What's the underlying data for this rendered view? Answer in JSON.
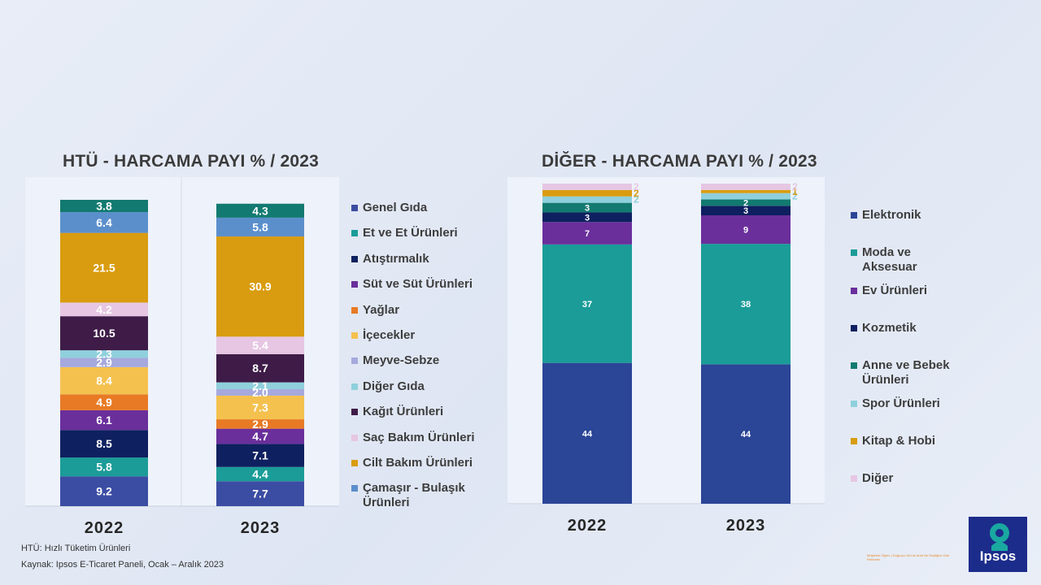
{
  "titles": {
    "left": "HTÜ - HARCAMA PAYI %  / 2023",
    "right": "DİĞER - HARCAMA PAYI %  / 2023"
  },
  "chart_data": [
    {
      "type": "bar",
      "stacked": true,
      "title": "HTÜ - HARCAMA PAYI %  / 2023",
      "categories": [
        "2022",
        "2023"
      ],
      "series": [
        {
          "name": "Genel Gıda",
          "color": "#3b4da3",
          "values": [
            9.2,
            7.7
          ]
        },
        {
          "name": "Et ve Et Ürünleri",
          "color": "#1b9c98",
          "values": [
            5.8,
            4.4
          ]
        },
        {
          "name": "Atıştırmalık",
          "color": "#0e2060",
          "values": [
            8.5,
            7.1
          ]
        },
        {
          "name": "Süt ve Süt Ürünleri",
          "color": "#6a2f9b",
          "values": [
            6.1,
            4.7
          ]
        },
        {
          "name": "Yağlar",
          "color": "#e87a25",
          "values": [
            4.9,
            2.9
          ]
        },
        {
          "name": "İçecekler",
          "color": "#f4c14f",
          "values": [
            8.4,
            7.3
          ]
        },
        {
          "name": "Meyve-Sebze",
          "color": "#a6a9dd",
          "values": [
            2.9,
            2.0
          ]
        },
        {
          "name": "Diğer Gıda",
          "color": "#8fd0dc",
          "values": [
            2.3,
            2.1
          ]
        },
        {
          "name": "Kağıt Ürünleri",
          "color": "#3f1c48",
          "values": [
            10.5,
            8.7
          ]
        },
        {
          "name": "Saç Bakım Ürünleri",
          "color": "#e6c6e3",
          "values": [
            4.2,
            5.4
          ]
        },
        {
          "name": "Cilt Bakım Ürünleri",
          "color": "#d99c10",
          "values": [
            21.5,
            30.9
          ]
        },
        {
          "name": "Çamaşır - Bulaşık Ürünleri",
          "color": "#5b8fcc",
          "values": [
            6.4,
            5.8
          ]
        },
        {
          "name": "",
          "color": "#127a70",
          "values": [
            3.8,
            4.3
          ]
        }
      ],
      "grid": false
    },
    {
      "type": "bar",
      "stacked": true,
      "title": "DİĞER - HARCAMA PAYI %  / 2023",
      "categories": [
        "2022",
        "2023"
      ],
      "series": [
        {
          "name": "Elektronik",
          "color": "#2b4597",
          "values": [
            44,
            44
          ]
        },
        {
          "name": "Moda ve Aksesuar",
          "color": "#1b9c98",
          "values": [
            37,
            38
          ]
        },
        {
          "name": "Ev Ürünleri",
          "color": "#6a2f9b",
          "values": [
            7,
            9
          ]
        },
        {
          "name": "Kozmetik",
          "color": "#0e2060",
          "values": [
            3,
            3
          ]
        },
        {
          "name": "Anne ve Bebek Ürünleri",
          "color": "#127a70",
          "values": [
            3,
            2
          ]
        },
        {
          "name": "Spor Ürünleri",
          "color": "#8fd0dc",
          "values": [
            2,
            2
          ]
        },
        {
          "name": "Kitap & Hobi",
          "color": "#d99c10",
          "values": [
            2,
            1
          ]
        },
        {
          "name": "Diğer",
          "color": "#e6c6e3",
          "values": [
            2,
            2
          ]
        }
      ],
      "grid": false
    }
  ],
  "footnotes": {
    "line1": "HTÜ: Hızlı Tüketim Ürünleri",
    "line2": "Kaynak: Ipsos E-Ticaret Paneli, Ocak – Aralık 2023"
  },
  "logo": {
    "text": "Ipsos"
  },
  "tagline": "Müşterini Öğren | Doğruyu Veri ile Anla Ne Seçtiğine Dair Rehberin"
}
